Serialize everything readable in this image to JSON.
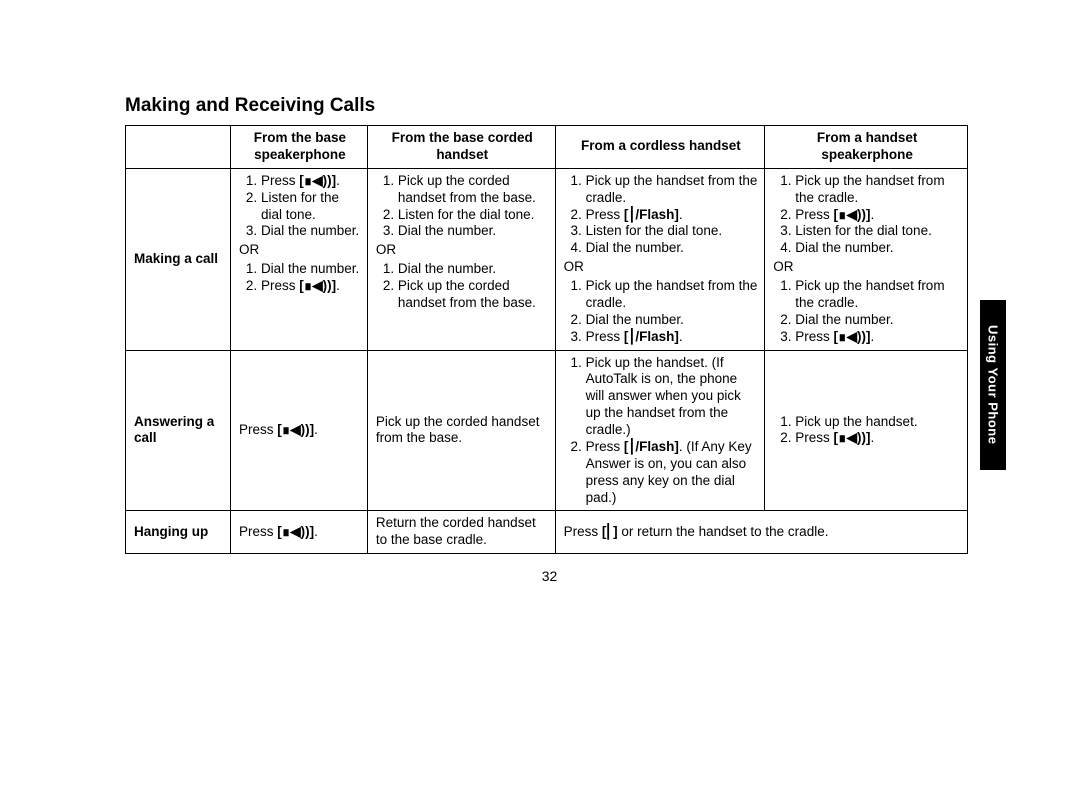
{
  "title": "Making and Receiving Calls",
  "sidetab": "Using Your Phone",
  "pagenum": "32",
  "icons": {
    "speaker": "[∎◀))]",
    "flash": "[⎮/Flash]",
    "end": "[⎜]"
  },
  "headers": {
    "c1": "From the base speakerphone",
    "c2": "From the base corded handset",
    "c3": "From a cordless handset",
    "c4": "From a handset speakerphone"
  },
  "rows": {
    "making": {
      "label": "Making a call",
      "c1a_1": "Press ",
      "c1a_1s": ".",
      "c1a_2": "Listen for the dial tone.",
      "c1a_3": "Dial the number.",
      "c1_or": "OR",
      "c1b_1": "Dial the number.",
      "c1b_2": "Press ",
      "c1b_2s": ".",
      "c2a_1": "Pick up the corded handset from the base.",
      "c2a_2": "Listen for the dial tone.",
      "c2a_3": "Dial the number.",
      "c2_or": "OR",
      "c2b_1": "Dial the number.",
      "c2b_2": "Pick up the corded handset from the base.",
      "c3a_1": "Pick up the handset from the cradle.",
      "c3a_2p": "Press ",
      "c3a_2s": ".",
      "c3a_3": "Listen for the dial tone.",
      "c3a_4": "Dial the number.",
      "c3_or": "OR",
      "c3b_1": "Pick up the handset from the cradle.",
      "c3b_2": "Dial the number.",
      "c3b_3p": "Press ",
      "c3b_3s": ".",
      "c4a_1": "Pick up the handset from the cradle.",
      "c4a_2p": "Press ",
      "c4a_2s": ".",
      "c4a_3": "Listen for the dial tone.",
      "c4a_4": "Dial the number.",
      "c4_or": "OR",
      "c4b_1": "Pick up the handset from the cradle.",
      "c4b_2": "Dial the number.",
      "c4b_3p": "Press ",
      "c4b_3s": "."
    },
    "answering": {
      "label": "Answering a call",
      "c1p": "Press ",
      "c1s": ".",
      "c2": "Pick up the corded handset from the base.",
      "c3_1": "Pick up the handset. (If AutoTalk is on, the phone will answer when you pick up the handset from the cradle.)",
      "c3_2p": "Press ",
      "c3_2s": ". (If Any Key Answer is on, you can also press any key on the dial pad.)",
      "c4_1": "Pick up the handset.",
      "c4_2p": "Press ",
      "c4_2s": "."
    },
    "hanging": {
      "label": "Hanging up",
      "c1p": "Press ",
      "c1s": ".",
      "c2": "Return the corded handset to the base cradle.",
      "c34p": "Press ",
      "c34s": " or return the handset to the cradle."
    }
  }
}
